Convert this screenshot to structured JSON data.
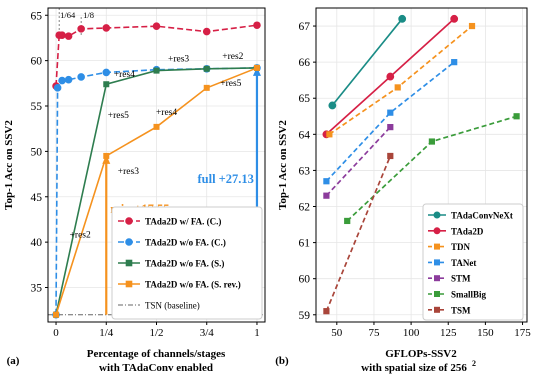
{
  "chart_data": [
    {
      "panel": "(a)",
      "type": "line",
      "xlabel": "Percentage of channels/stages",
      "xlabel2": "with TAdaConv enabled",
      "ylabel": "Top-1 Acc on SSV2",
      "xticks": [
        "0",
        "1/4",
        "1/2",
        "3/4",
        "1"
      ],
      "yticks": [
        35,
        40,
        45,
        50,
        55,
        60,
        65
      ],
      "xlim": [
        -0.04,
        1.04
      ],
      "ylim": [
        31.2,
        65.8
      ],
      "top_labels": [
        "1/64",
        "1/8"
      ],
      "series": [
        {
          "name": "TAda2D w/ FA. (C.)",
          "color": "#d62046",
          "dash": "6,3",
          "marker": "circle",
          "points": [
            [
              0,
              57.2
            ],
            [
              0.015625,
              62.8
            ],
            [
              0.0625,
              62.8
            ],
            [
              0.125,
              62.7
            ],
            [
              0.25,
              63.5
            ],
            [
              0.5,
              63.6
            ],
            [
              0.75,
              63.8
            ],
            [
              1,
              63.2
            ],
            [
              1.25,
              63.9
            ]
          ]
        },
        {
          "name": "TAda2D w/o FA. (C.)",
          "color": "#2e8ee6",
          "dash": "6,3",
          "marker": "circle",
          "points": [
            [
              0,
              32.0
            ],
            [
              0.0078,
              57.0
            ],
            [
              0.03,
              57.8
            ],
            [
              0.0625,
              57.9
            ],
            [
              0.125,
              58.2
            ],
            [
              0.25,
              58.7
            ],
            [
              0.5,
              59.0
            ],
            [
              0.75,
              59.1
            ],
            [
              1,
              59.2
            ]
          ]
        },
        {
          "name": "TAda2D w/o FA. (S.)",
          "color": "#2e7d4f",
          "dash": "",
          "marker": "square",
          "points": [
            [
              0,
              32.0
            ],
            [
              0.25,
              57.4
            ],
            [
              0.5,
              58.9
            ],
            [
              0.75,
              59.1
            ],
            [
              1,
              59.2
            ]
          ]
        },
        {
          "name": "TAda2D w/o FA. (S. rev.)",
          "color": "#f5921e",
          "dash": "",
          "marker": "square",
          "points": [
            [
              0,
              32.0
            ],
            [
              0.25,
              49.5
            ],
            [
              0.5,
              52.7
            ],
            [
              0.75,
              57.0
            ],
            [
              1,
              59.2
            ]
          ]
        }
      ],
      "baseline": {
        "name": "TSN (baseline)",
        "value": 32.0,
        "color": "#666666"
      },
      "annotations": [
        {
          "text": "+res2",
          "x": 0.12,
          "y": 40.5
        },
        {
          "text": "+res3",
          "x": 0.36,
          "y": 47.5
        },
        {
          "text": "+res4",
          "x": 0.55,
          "y": 54.0
        },
        {
          "text": "+res5",
          "x": 0.87,
          "y": 57.2
        },
        {
          "text": "+res3",
          "x": 0.61,
          "y": 59.9
        },
        {
          "text": "+res2",
          "x": 0.88,
          "y": 60.2
        },
        {
          "text": "+res4",
          "x": 0.34,
          "y": 58.2
        },
        {
          "text": "+res5",
          "x": 0.31,
          "y": 53.7
        }
      ],
      "highlights": [
        {
          "text": "full +27.13",
          "color": "#2e8ee6",
          "x": 1,
          "from": 32.0,
          "to": 59.2
        },
        {
          "text": "min +17.55",
          "color": "#f5921e",
          "x": 0.25,
          "from": 32.0,
          "to": 49.5
        }
      ]
    },
    {
      "panel": "(b)",
      "type": "line",
      "xlabel": "GFLOPs-SSV2",
      "xlabel2": "with spatial size of 256",
      "xlabel2_sup": "2",
      "ylabel": "Top-1 Acc on SSV2",
      "xticks": [
        50,
        75,
        100,
        125,
        150,
        175
      ],
      "yticks": [
        59,
        60,
        61,
        62,
        63,
        64,
        65,
        66,
        67
      ],
      "xlim": [
        36,
        178
      ],
      "ylim": [
        58.8,
        67.5
      ],
      "series": [
        {
          "name": "TAdaConvNeXt",
          "color": "#1a8c86",
          "dash": "",
          "marker": "circle",
          "points": [
            [
              47,
              64.8
            ],
            [
              94,
              67.2
            ]
          ]
        },
        {
          "name": "TAda2D",
          "color": "#d62046",
          "dash": "",
          "marker": "circle",
          "points": [
            [
              43,
              64.0
            ],
            [
              86,
              65.6
            ],
            [
              129,
              67.2
            ]
          ]
        },
        {
          "name": "TDN",
          "color": "#f5921e",
          "dash": "5,3",
          "marker": "square",
          "points": [
            [
              45,
              64.0
            ],
            [
              91,
              65.3
            ],
            [
              141,
              67.0
            ]
          ]
        },
        {
          "name": "TANet",
          "color": "#2e8ee6",
          "dash": "5,3",
          "marker": "square",
          "points": [
            [
              43,
              62.7
            ],
            [
              86,
              64.6
            ],
            [
              129,
              66.0
            ]
          ]
        },
        {
          "name": "STM",
          "color": "#8c3c9c",
          "dash": "5,3",
          "marker": "square",
          "points": [
            [
              43,
              62.3
            ],
            [
              86,
              64.2
            ]
          ]
        },
        {
          "name": "SmallBig",
          "color": "#3a9c3a",
          "dash": "5,3",
          "marker": "square",
          "points": [
            [
              57,
              61.6
            ],
            [
              114,
              63.8
            ],
            [
              171,
              64.5
            ]
          ]
        },
        {
          "name": "TSM",
          "color": "#a9453a",
          "dash": "5,3",
          "marker": "square",
          "points": [
            [
              43,
              59.1
            ],
            [
              86,
              63.4
            ]
          ]
        }
      ]
    }
  ]
}
